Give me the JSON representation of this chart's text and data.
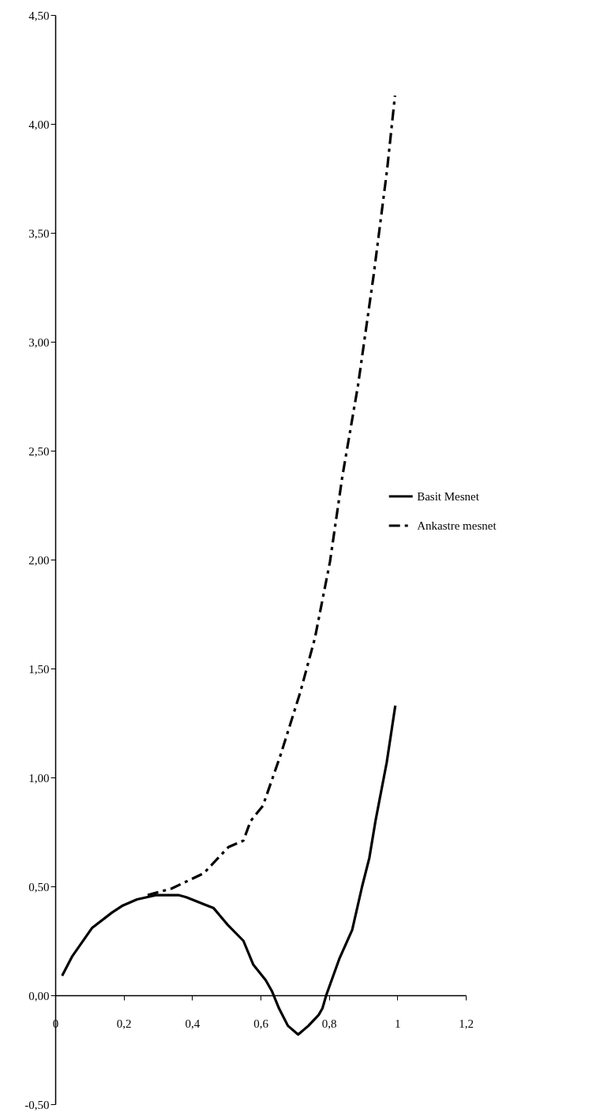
{
  "chart_data": {
    "type": "line",
    "legend": "right",
    "grid": false,
    "marker": "none",
    "xlim": [
      0,
      1.2
    ],
    "xticks": [
      0,
      {
        "value": 0.2,
        "label": "0,2"
      },
      {
        "value": 0.4,
        "label": "0,4"
      },
      {
        "value": 0.6,
        "label": "0,6"
      },
      {
        "value": 0.8,
        "label": "0,8"
      },
      1,
      {
        "value": 1.2,
        "label": "1,2"
      }
    ],
    "ylim": [
      -0.5,
      4.5
    ],
    "yticks": [
      {
        "value": -0.5,
        "label": "-0,50"
      },
      {
        "value": 0,
        "label": "0,00"
      },
      {
        "value": 0.5,
        "label": "0,50"
      },
      {
        "value": 1,
        "label": "1,00"
      },
      {
        "value": 1.5,
        "label": "1,50"
      },
      {
        "value": 2,
        "label": "2,00"
      },
      {
        "value": 2.5,
        "label": "2,50"
      },
      {
        "value": 3,
        "label": "3,00"
      },
      {
        "value": 3.5,
        "label": "3,50"
      },
      {
        "value": 4,
        "label": "4,00"
      },
      {
        "value": 4.5,
        "label": "4,50"
      }
    ],
    "series": [
      {
        "name": "Basit Mesnet",
        "color": "#000000",
        "line_style": "solid",
        "x": [
          0.02,
          0.05,
          0.108,
          0.166,
          0.195,
          0.239,
          0.296,
          0.36,
          0.383,
          0.463,
          0.506,
          0.55,
          0.579,
          0.615,
          0.633,
          0.654,
          0.68,
          0.71,
          0.74,
          0.77,
          0.781,
          0.792,
          0.831,
          0.868,
          0.897,
          0.918,
          0.936,
          0.969,
          0.994
        ],
        "values": [
          0.09,
          0.18,
          0.31,
          0.38,
          0.41,
          0.44,
          0.46,
          0.46,
          0.45,
          0.4,
          0.32,
          0.25,
          0.14,
          0.07,
          0.02,
          -0.06,
          -0.14,
          -0.18,
          -0.14,
          -0.09,
          -0.06,
          0,
          0.17,
          0.3,
          0.5,
          0.63,
          0.8,
          1.07,
          1.33
        ]
      },
      {
        "name": "Ankastre mesnet",
        "color": "#000000",
        "line_style": "dashed",
        "x": [
          0.27,
          0.34,
          0.434,
          0.506,
          0.55,
          0.571,
          0.607,
          0.658,
          0.716,
          0.759,
          0.803,
          0.839,
          0.885,
          0.931,
          0.97,
          0.993
        ],
        "values": [
          0.46,
          0.49,
          0.56,
          0.68,
          0.71,
          0.8,
          0.87,
          1.1,
          1.39,
          1.64,
          1.99,
          2.38,
          2.8,
          3.31,
          3.79,
          4.13
        ]
      }
    ]
  }
}
